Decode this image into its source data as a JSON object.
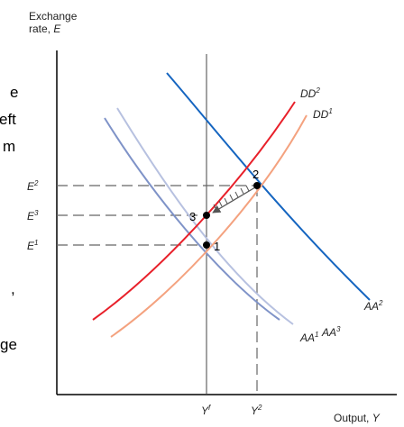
{
  "left_text_fragments": [
    "e",
    "eft",
    "m",
    ",",
    "ge"
  ],
  "axes": {
    "y_label_line1": "Exchange",
    "y_label_line2_prefix": "rate, ",
    "y_label_line2_var": "E",
    "x_label_prefix": "Output, ",
    "x_label_var": "Y"
  },
  "y_ticks": [
    {
      "base": "E",
      "sup": "2"
    },
    {
      "base": "E",
      "sup": "3"
    },
    {
      "base": "E",
      "sup": "1"
    }
  ],
  "x_ticks": [
    {
      "base": "Y",
      "sup": "f"
    },
    {
      "base": "Y",
      "sup": "2"
    }
  ],
  "curves": {
    "DD2": {
      "base": "DD",
      "sup": "2",
      "color": "#e8202a"
    },
    "DD1": {
      "base": "DD",
      "sup": "1",
      "color": "#f4a27f"
    },
    "AA2": {
      "base": "AA",
      "sup": "2",
      "color": "#1565c0"
    },
    "AA1": {
      "base": "AA",
      "sup": "1",
      "color": "#7f93c8"
    },
    "AA3": {
      "base": "AA",
      "sup": "3",
      "color": "#b7c1e0"
    }
  },
  "points": [
    "1",
    "2",
    "3"
  ]
}
